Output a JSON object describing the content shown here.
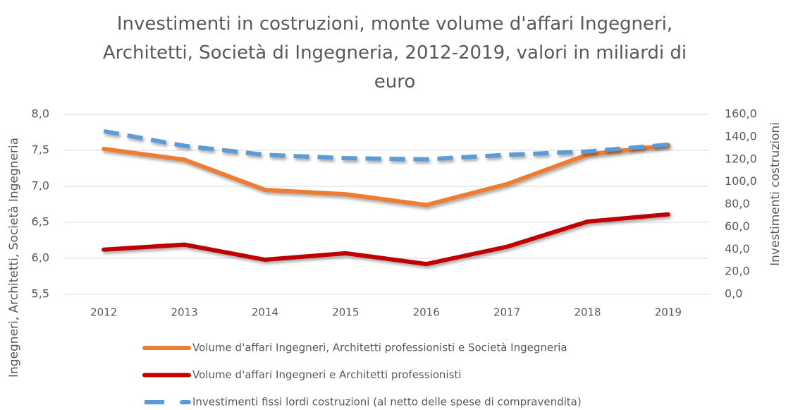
{
  "chart_data": {
    "type": "line",
    "title": "Investimenti in costruzioni, monte volume d'affari Ingegneri, Architetti, Società di Ingegneria, 2012-2019, valori in miliardi di euro",
    "ylabel": "Ingegneri, Architetti, Società Ingegneria",
    "y2label": "Investimenti costruzioni",
    "categories": [
      "2012",
      "2013",
      "2014",
      "2015",
      "2016",
      "2017",
      "2018",
      "2019"
    ],
    "series": [
      {
        "name": "Volume d'affari Ingegneri, Architetti professionisti e Società Ingegneria",
        "color": "#ed7d31",
        "values": [
          7.52,
          7.37,
          6.95,
          6.89,
          6.74,
          7.03,
          7.44,
          7.57
        ]
      },
      {
        "name": "Volume d'affari Ingegneri e Architetti professionisti",
        "color": "#c00000",
        "values": [
          6.12,
          6.19,
          5.98,
          6.07,
          5.92,
          6.16,
          6.51,
          6.61
        ]
      },
      {
        "name": "Investimenti fissi lordi costruzioni (al netto delle spese di compravendita)",
        "color": "#5b9bd5",
        "dashed": true,
        "axis": "y2",
        "values": [
          145,
          132,
          124,
          121,
          120,
          124,
          127,
          133
        ]
      }
    ],
    "ylim": [
      5.5,
      8.0
    ],
    "yticks": [
      {
        "value": 5.5,
        "label": "5,5"
      },
      {
        "value": 6.0,
        "label": "6,0"
      },
      {
        "value": 6.5,
        "label": "6,5"
      },
      {
        "value": 7.0,
        "label": "7,0"
      },
      {
        "value": 7.5,
        "label": "7,5"
      },
      {
        "value": 8.0,
        "label": "8,0"
      }
    ],
    "y2lim": [
      0,
      160
    ],
    "y2ticks": [
      {
        "value": 0,
        "label": "0,0"
      },
      {
        "value": 20,
        "label": "20,0"
      },
      {
        "value": 40,
        "label": "40,0"
      },
      {
        "value": 60,
        "label": "60,0"
      },
      {
        "value": 80,
        "label": "80,0"
      },
      {
        "value": 100,
        "label": "100,0"
      },
      {
        "value": 120,
        "label": "120,0"
      },
      {
        "value": 140,
        "label": "140,0"
      },
      {
        "value": 160,
        "label": "160,0"
      }
    ],
    "grid": true,
    "legend": "bottom"
  }
}
